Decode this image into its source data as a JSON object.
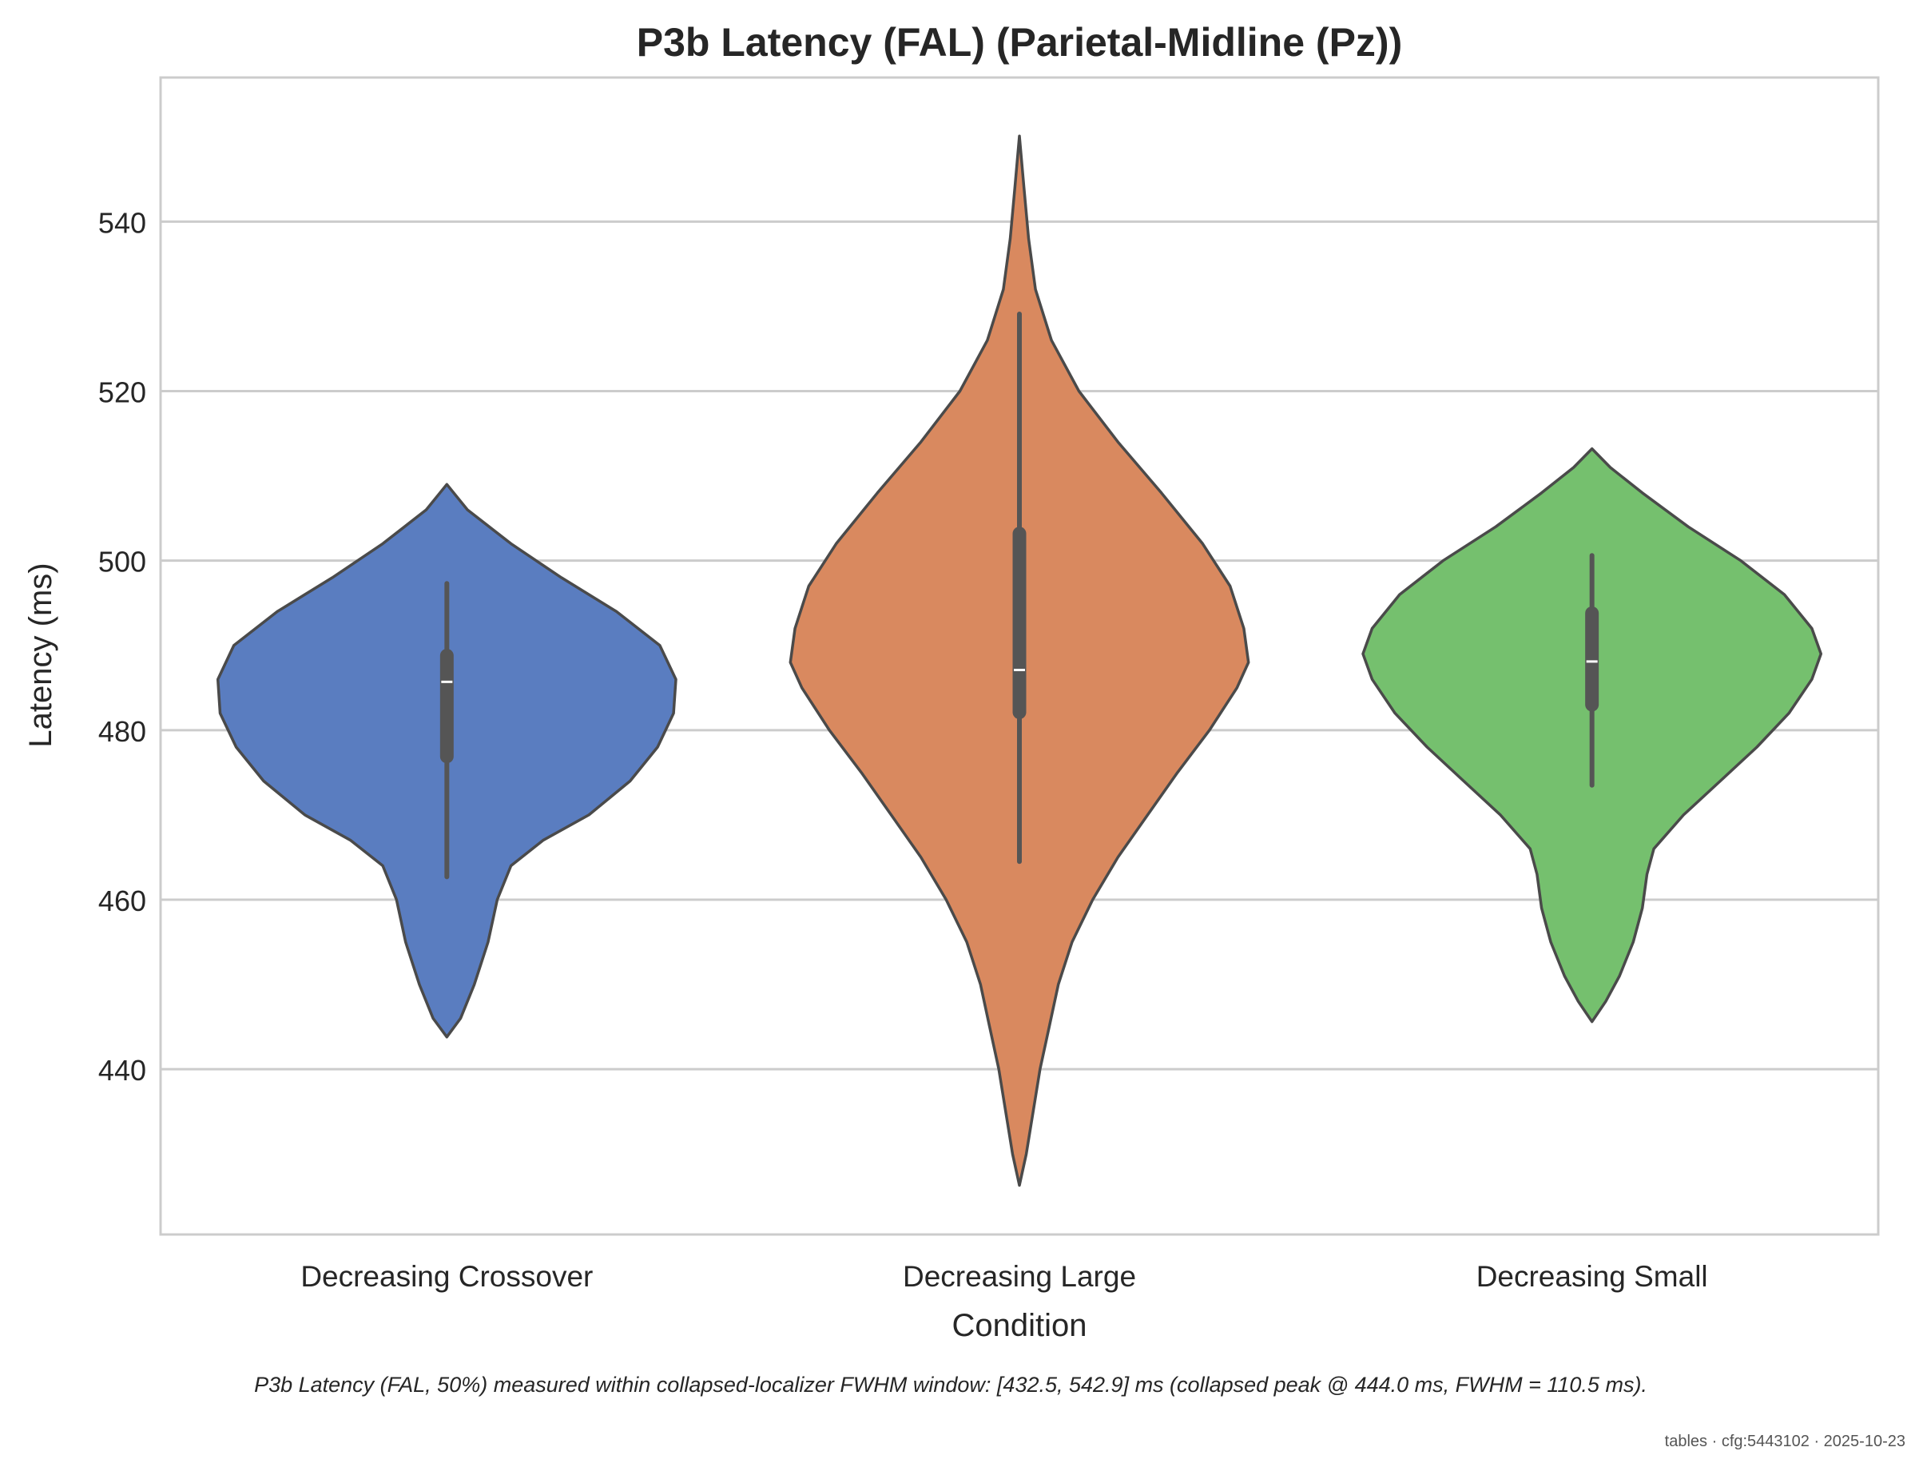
{
  "chart_data": {
    "type": "violin",
    "title": "P3b Latency (FAL) (Parietal-Midline (Pz))",
    "xlabel": "Condition",
    "ylabel": "Latency (ms)",
    "ylim": [
      420.5,
      557
    ],
    "yticks": [
      440,
      460,
      480,
      500,
      520,
      540
    ],
    "grid": "horizontal",
    "categories": [
      "Decreasing Crossover",
      "Decreasing Large",
      "Decreasing Small"
    ],
    "series": [
      {
        "category": "Decreasing Crossover",
        "color": "#5a7dc0",
        "kde_min": 443.8,
        "kde_max": 509.0,
        "whisker_low": 462.7,
        "whisker_high": 497.3,
        "q1": 476.9,
        "median": 485.7,
        "q3": 488.8,
        "density": [
          [
            443.8,
            0.0
          ],
          [
            446.0,
            0.06
          ],
          [
            450.0,
            0.12
          ],
          [
            455.0,
            0.18
          ],
          [
            460.0,
            0.22
          ],
          [
            464.0,
            0.28
          ],
          [
            467.0,
            0.42
          ],
          [
            470.0,
            0.62
          ],
          [
            474.0,
            0.8
          ],
          [
            478.0,
            0.92
          ],
          [
            482.0,
            0.99
          ],
          [
            486.0,
            1.0
          ],
          [
            490.0,
            0.93
          ],
          [
            494.0,
            0.74
          ],
          [
            498.0,
            0.5
          ],
          [
            502.0,
            0.28
          ],
          [
            506.0,
            0.09
          ],
          [
            508.0,
            0.03
          ],
          [
            509.0,
            0.0
          ]
        ]
      },
      {
        "category": "Decreasing Large",
        "color": "#d9895f",
        "kde_min": 426.3,
        "kde_max": 550.1,
        "whisker_low": 464.5,
        "whisker_high": 529.1,
        "q1": 482.1,
        "median": 487.1,
        "q3": 503.2,
        "density": [
          [
            426.3,
            0.0
          ],
          [
            430.0,
            0.03
          ],
          [
            435.0,
            0.06
          ],
          [
            440.0,
            0.09
          ],
          [
            445.0,
            0.13
          ],
          [
            450.0,
            0.17
          ],
          [
            455.0,
            0.23
          ],
          [
            460.0,
            0.32
          ],
          [
            465.0,
            0.43
          ],
          [
            470.0,
            0.56
          ],
          [
            475.0,
            0.69
          ],
          [
            480.0,
            0.83
          ],
          [
            485.0,
            0.95
          ],
          [
            488.0,
            1.0
          ],
          [
            492.0,
            0.98
          ],
          [
            497.0,
            0.92
          ],
          [
            502.0,
            0.8
          ],
          [
            508.0,
            0.62
          ],
          [
            514.0,
            0.43
          ],
          [
            520.0,
            0.26
          ],
          [
            526.0,
            0.14
          ],
          [
            532.0,
            0.07
          ],
          [
            538.0,
            0.04
          ],
          [
            544.0,
            0.02
          ],
          [
            550.1,
            0.0
          ]
        ]
      },
      {
        "category": "Decreasing Small",
        "color": "#75c06e",
        "kde_min": 445.6,
        "kde_max": 513.2,
        "whisker_low": 473.5,
        "whisker_high": 500.6,
        "q1": 483.0,
        "median": 488.1,
        "q3": 493.8,
        "density": [
          [
            445.6,
            0.0
          ],
          [
            448.0,
            0.06
          ],
          [
            451.0,
            0.12
          ],
          [
            455.0,
            0.18
          ],
          [
            459.0,
            0.22
          ],
          [
            463.0,
            0.24
          ],
          [
            466.0,
            0.27
          ],
          [
            470.0,
            0.4
          ],
          [
            474.0,
            0.56
          ],
          [
            478.0,
            0.72
          ],
          [
            482.0,
            0.86
          ],
          [
            486.0,
            0.96
          ],
          [
            489.0,
            1.0
          ],
          [
            492.0,
            0.96
          ],
          [
            496.0,
            0.84
          ],
          [
            500.0,
            0.65
          ],
          [
            504.0,
            0.42
          ],
          [
            508.0,
            0.22
          ],
          [
            511.0,
            0.08
          ],
          [
            513.2,
            0.0
          ]
        ]
      }
    ],
    "footnote": "P3b Latency (FAL, 50%) measured within collapsed-localizer FWHM window: [432.5, 542.9] ms (collapsed peak @ 444.0 ms, FWHM = 110.5 ms).",
    "watermark": "tables · cfg:5443102 · 2025-10-23"
  }
}
